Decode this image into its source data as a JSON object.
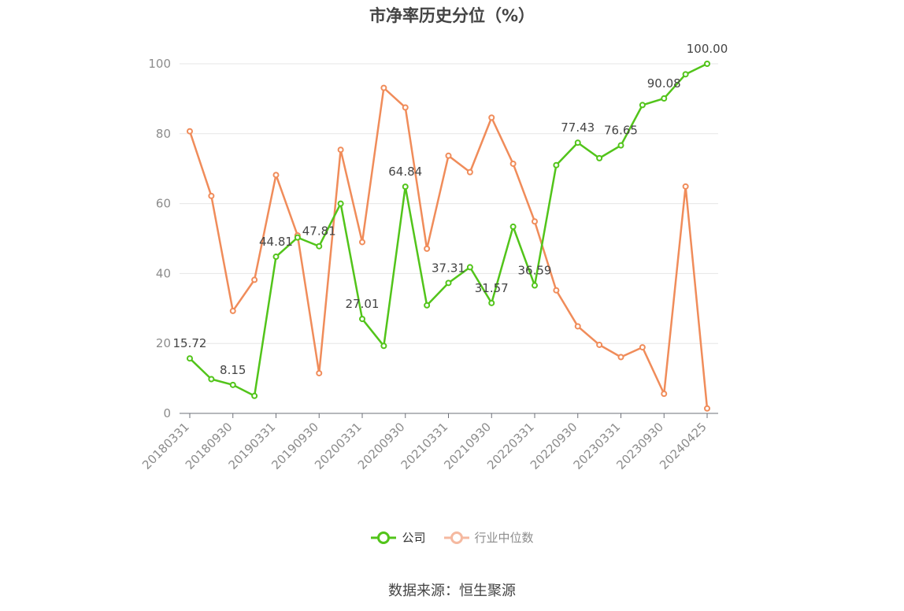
{
  "title": "市净率历史分位（%）",
  "source": "数据来源：恒生聚源",
  "chart_data": {
    "type": "line",
    "title": "市净率历史分位（%）",
    "x": [
      "20180331",
      "20180630",
      "20180930",
      "20181231",
      "20190331",
      "20190630",
      "20190930",
      "20191231",
      "20200331",
      "20200630",
      "20200930",
      "20201231",
      "20210331",
      "20210630",
      "20210930",
      "20211231",
      "20220331",
      "20220630",
      "20220930",
      "20221231",
      "20230331",
      "20230630",
      "20230930",
      "20231231",
      "20240425"
    ],
    "xtick_labels": [
      "20180331",
      "20180930",
      "20190331",
      "20190930",
      "20200331",
      "20200930",
      "20210331",
      "20210930",
      "20220331",
      "20220930",
      "20230331",
      "20230930",
      "20240425"
    ],
    "yticks": [
      0,
      20,
      40,
      60,
      80,
      100
    ],
    "ylim": [
      0,
      100
    ],
    "grid": true,
    "legend": "bottom-center",
    "series": [
      {
        "name": "公司",
        "color": "#52c41a",
        "values": [
          15.72,
          9.8,
          8.15,
          5.0,
          44.81,
          50.3,
          47.81,
          60.0,
          27.01,
          19.3,
          64.84,
          30.9,
          37.31,
          41.8,
          31.57,
          53.4,
          36.59,
          71.0,
          77.43,
          73.0,
          76.65,
          88.2,
          90.08,
          97.0,
          100.0
        ],
        "labels": [
          "15.72",
          "",
          "8.15",
          "",
          "44.81",
          "",
          "47.81",
          "",
          "27.01",
          "",
          "64.84",
          "",
          "37.31",
          "",
          "31.57",
          "",
          "36.59",
          "",
          "77.43",
          "",
          "76.65",
          "",
          "90.08",
          "",
          "100.00"
        ]
      },
      {
        "name": "行业中位数",
        "color": "#f08c5a",
        "values": [
          80.7,
          62.2,
          29.3,
          38.2,
          68.2,
          50.9,
          11.5,
          75.4,
          49.0,
          93.1,
          87.5,
          47.1,
          73.7,
          69.0,
          84.6,
          71.4,
          54.9,
          35.2,
          24.9,
          19.6,
          16.1,
          18.9,
          5.6,
          64.9,
          1.4
        ]
      }
    ]
  }
}
